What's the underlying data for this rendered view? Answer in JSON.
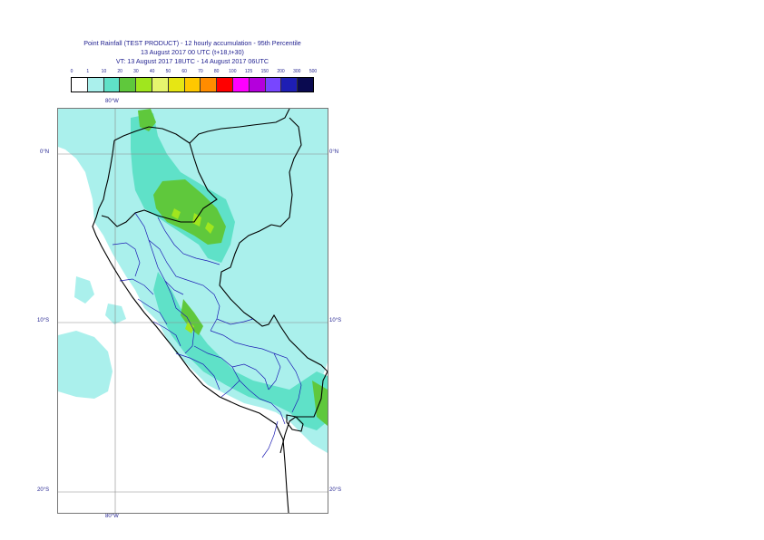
{
  "title": {
    "line1": "Point Rainfall (TEST PRODUCT) - 12 hourly accumulation - 95th Percentile",
    "line2": "13 August 2017 00 UTC (t+18,t+30)",
    "line3": "VT: 13 August 2017 18UTC - 14 August 2017 06UTC"
  },
  "legend": {
    "labels": [
      "0",
      "1",
      "10",
      "20",
      "30",
      "40",
      "50",
      "60",
      "70",
      "80",
      "100",
      "125",
      "150",
      "200",
      "300",
      "500"
    ],
    "colors": [
      "#ffffff",
      "#aaf0ec",
      "#5fe1c8",
      "#5fc83c",
      "#a0e61e",
      "#e6f56e",
      "#e6e614",
      "#ffc800",
      "#ff8c00",
      "#ff0000",
      "#ff00ff",
      "#b400dc",
      "#7846ff",
      "#1e1eb4",
      "#0a0a50"
    ]
  },
  "axes": {
    "top_lon": "80°W",
    "bottom_lon": "80°W",
    "lat_0_left": "0°N",
    "lat_0_right": "0°N",
    "lat_10_left": "10°S",
    "lat_10_right": "10°S",
    "lat_20_left": "20°S",
    "lat_20_right": "20°S"
  },
  "map": {
    "rain_light": "#aaf0ec",
    "rain_mid": "#5fe1c8",
    "rain_heavy": "#5fc83c",
    "rain_strong": "#a0e61e",
    "border_color": "#000000",
    "region_color": "#1e1eb4",
    "grid_color": "#8a8a8a"
  }
}
